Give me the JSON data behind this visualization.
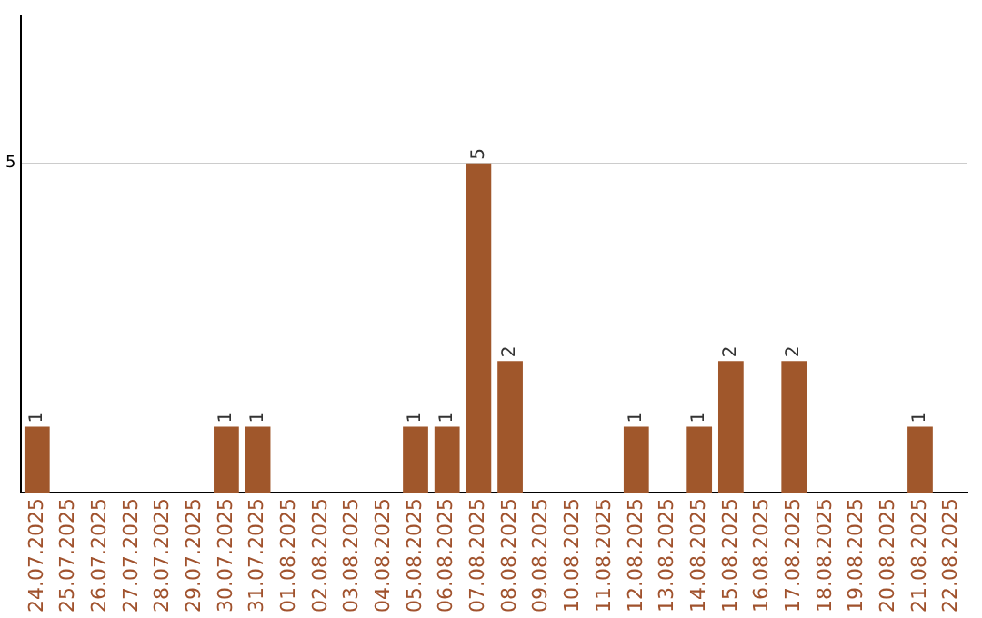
{
  "chart_data": {
    "type": "bar",
    "categories": [
      "24.07.2025",
      "25.07.2025",
      "26.07.2025",
      "27.07.2025",
      "28.07.2025",
      "29.07.2025",
      "30.07.2025",
      "31.07.2025",
      "01.08.2025",
      "02.08.2025",
      "03.08.2025",
      "04.08.2025",
      "05.08.2025",
      "06.08.2025",
      "07.08.2025",
      "08.08.2025",
      "09.08.2025",
      "10.08.2025",
      "11.08.2025",
      "12.08.2025",
      "13.08.2025",
      "14.08.2025",
      "15.08.2025",
      "16.08.2025",
      "17.08.2025",
      "18.08.2025",
      "19.08.2025",
      "20.08.2025",
      "21.08.2025",
      "22.08.2025"
    ],
    "values": [
      1,
      0,
      0,
      0,
      0,
      0,
      1,
      1,
      0,
      0,
      0,
      0,
      1,
      1,
      5,
      2,
      0,
      0,
      0,
      1,
      0,
      1,
      2,
      0,
      2,
      0,
      0,
      0,
      1,
      0
    ],
    "value_labels": [
      "1",
      null,
      null,
      null,
      null,
      null,
      "1",
      "1",
      null,
      null,
      null,
      null,
      "1",
      "1",
      "5",
      "2",
      null,
      null,
      null,
      "1",
      null,
      "1",
      "2",
      null,
      "2",
      null,
      null,
      null,
      "1",
      null
    ],
    "color": "#a0572b",
    "ylim": [
      0,
      7.25
    ],
    "yticks": [
      5
    ],
    "grid": "y"
  }
}
